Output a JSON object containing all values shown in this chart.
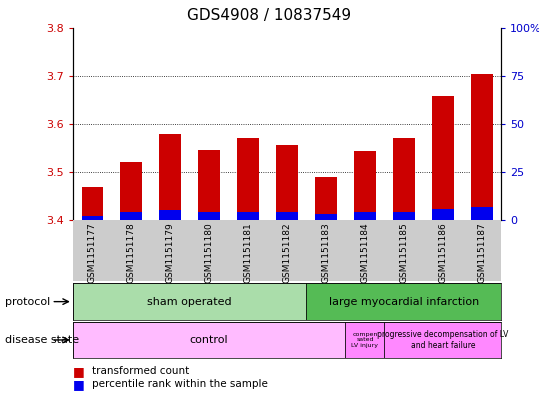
{
  "title": "GDS4908 / 10837549",
  "samples": [
    "GSM1151177",
    "GSM1151178",
    "GSM1151179",
    "GSM1151180",
    "GSM1151181",
    "GSM1151182",
    "GSM1151183",
    "GSM1151184",
    "GSM1151185",
    "GSM1151186",
    "GSM1151187"
  ],
  "transformed_count": [
    3.468,
    3.52,
    3.578,
    3.545,
    3.57,
    3.555,
    3.49,
    3.543,
    3.57,
    3.657,
    3.703
  ],
  "percentile_rank": [
    2,
    4,
    5,
    4,
    4,
    4,
    3,
    4,
    4,
    6,
    7
  ],
  "baseline": 3.4,
  "ylim_left": [
    3.4,
    3.8
  ],
  "ylim_right": [
    0,
    100
  ],
  "yticks_left": [
    3.4,
    3.5,
    3.6,
    3.7,
    3.8
  ],
  "yticks_right": [
    0,
    25,
    50,
    75,
    100
  ],
  "bar_color_red": "#cc0000",
  "bar_color_blue": "#0000ee",
  "bg_color": "#ffffff",
  "sham_color": "#aaddaa",
  "lmi_color": "#55bb55",
  "control_color": "#ffbbff",
  "comp_color": "#ff88ff",
  "prog_color": "#ff88ff",
  "sham_count": 6,
  "lmi_count": 5,
  "control_count": 7,
  "comp_count": 1,
  "prog_count": 3,
  "bar_width": 0.55,
  "left_tick_color": "#cc0000",
  "right_tick_color": "#0000cc"
}
